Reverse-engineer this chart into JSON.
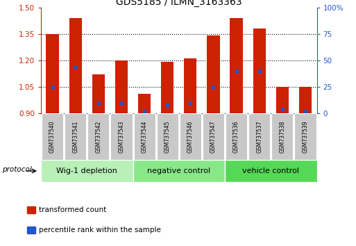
{
  "title": "GDS5185 / ILMN_3163363",
  "samples": [
    "GSM737540",
    "GSM737541",
    "GSM737542",
    "GSM737543",
    "GSM737544",
    "GSM737545",
    "GSM737546",
    "GSM737547",
    "GSM737536",
    "GSM737537",
    "GSM737538",
    "GSM737539"
  ],
  "red_values": [
    1.35,
    1.44,
    1.12,
    1.2,
    1.01,
    1.19,
    1.21,
    1.34,
    1.44,
    1.38,
    1.05,
    1.05
  ],
  "blue_percentile": [
    25,
    43,
    10,
    10,
    2,
    8,
    10,
    25,
    40,
    40,
    4,
    2
  ],
  "group_colors": [
    "#b8f0b8",
    "#88e888",
    "#55d855"
  ],
  "group_labels": [
    "Wig-1 depletion",
    "negative control",
    "vehicle control"
  ],
  "group_ranges": [
    [
      0,
      4
    ],
    [
      4,
      8
    ],
    [
      8,
      12
    ]
  ],
  "ylim_left": [
    0.9,
    1.5
  ],
  "ylim_right": [
    0,
    100
  ],
  "yticks_left": [
    0.9,
    1.05,
    1.2,
    1.35,
    1.5
  ],
  "yticks_right": [
    0,
    25,
    50,
    75,
    100
  ],
  "bar_color": "#cc2200",
  "dot_color": "#2255cc",
  "bar_width": 0.55,
  "background_color": "#ffffff",
  "left_axis_color": "#cc2200",
  "right_axis_color": "#2255cc",
  "legend_red_label": "transformed count",
  "legend_blue_label": "percentile rank within the sample",
  "protocol_label": "protocol",
  "title_fontsize": 10,
  "tick_fontsize": 7.5,
  "sample_fontsize": 5.5,
  "group_fontsize": 8,
  "legend_fontsize": 7.5
}
